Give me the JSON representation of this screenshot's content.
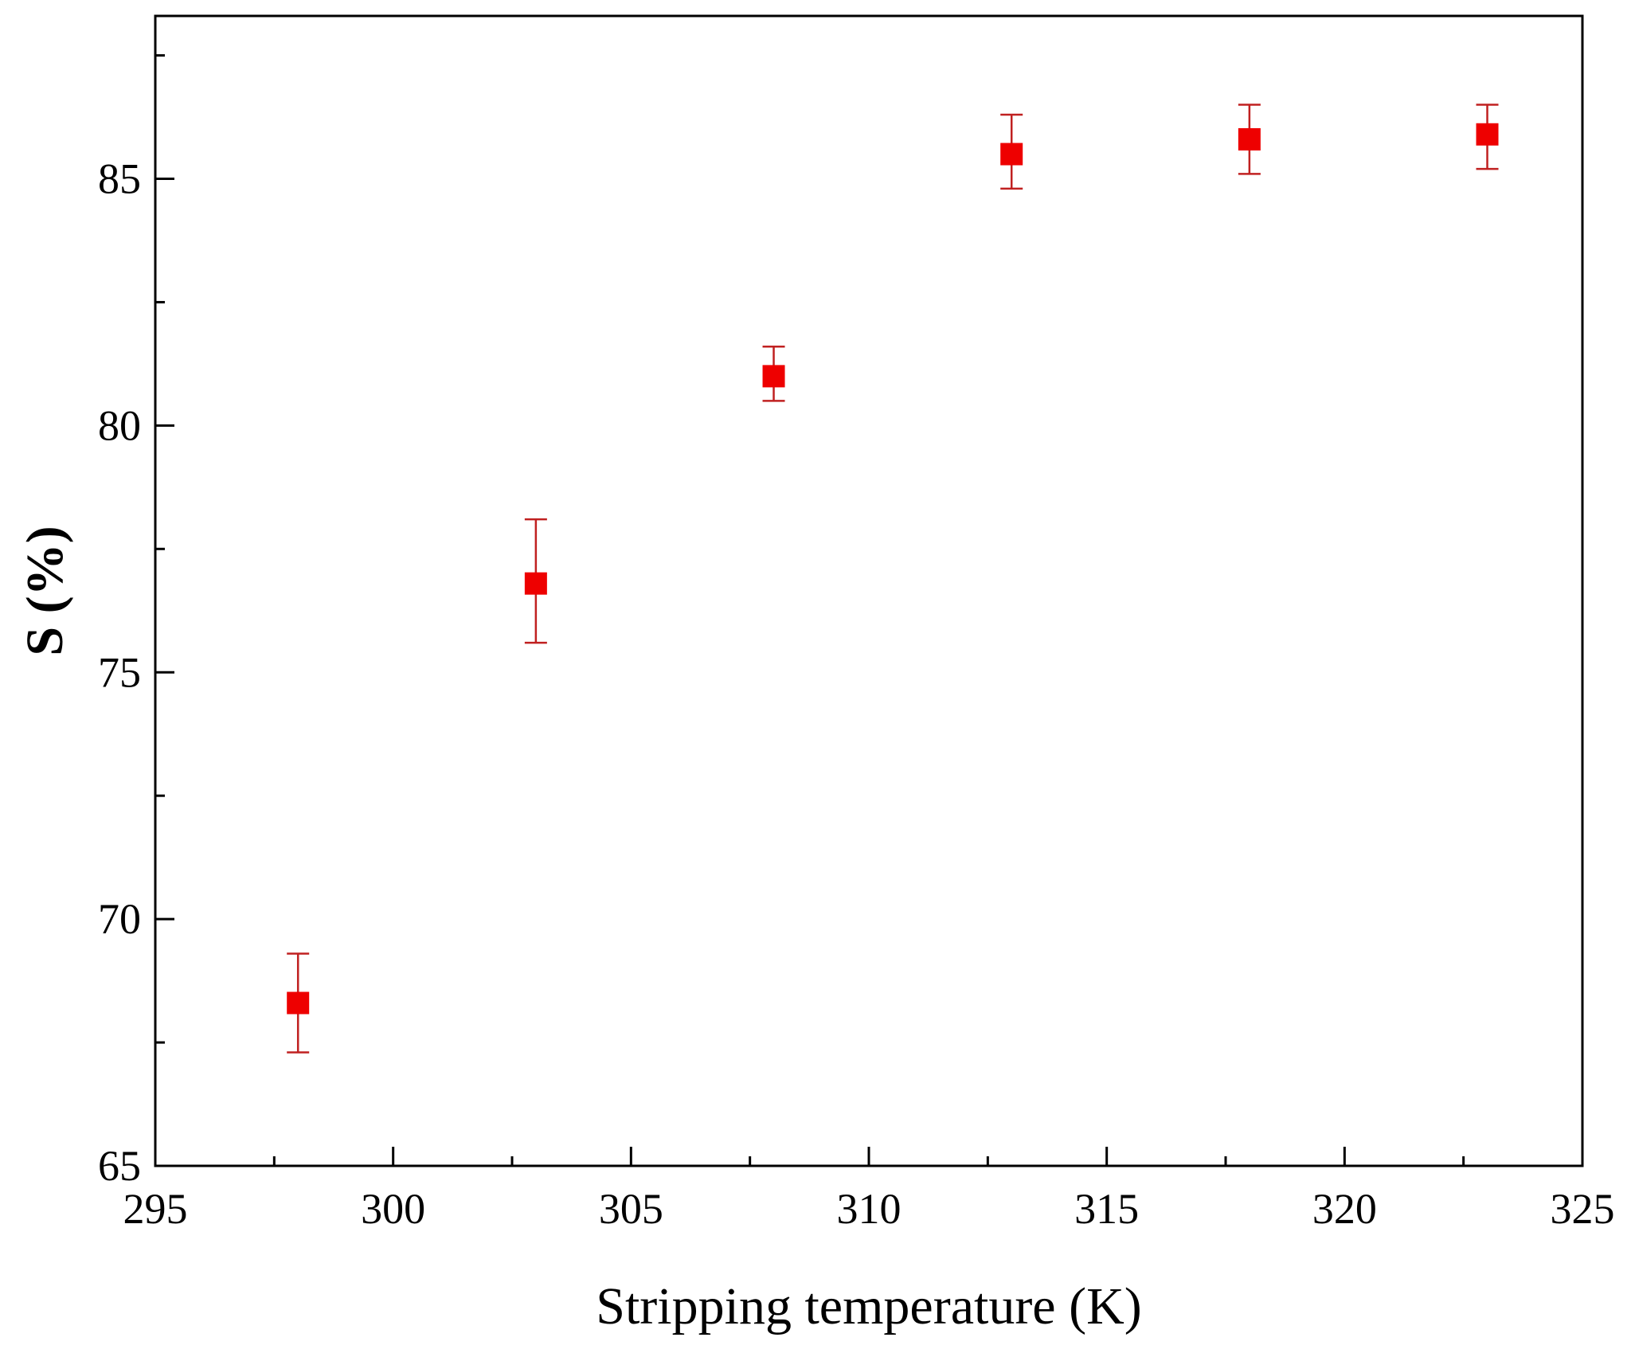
{
  "chart_data": {
    "type": "scatter",
    "title": "",
    "xlabel": "Stripping temperature (K)",
    "ylabel": "S (%)",
    "xlim": [
      295,
      325
    ],
    "ylim": [
      65,
      88.3
    ],
    "x_ticks": [
      "295",
      "300",
      "305",
      "310",
      "315",
      "320",
      "325"
    ],
    "y_ticks": [
      "65",
      "70",
      "75",
      "80",
      "85"
    ],
    "grid": false,
    "legend": "none",
    "marker": "square",
    "color": "#ee0000",
    "series": [
      {
        "points": [
          {
            "x": 298,
            "y": 68.3,
            "err_low": 67.3,
            "err_high": 69.3
          },
          {
            "x": 303,
            "y": 76.8,
            "err_low": 75.6,
            "err_high": 78.1
          },
          {
            "x": 308,
            "y": 81.0,
            "err_low": 80.5,
            "err_high": 81.6
          },
          {
            "x": 313,
            "y": 85.5,
            "err_low": 84.8,
            "err_high": 86.3
          },
          {
            "x": 318,
            "y": 85.8,
            "err_low": 85.1,
            "err_high": 86.5
          },
          {
            "x": 323,
            "y": 85.9,
            "err_low": 85.2,
            "err_high": 86.5
          }
        ]
      }
    ]
  }
}
